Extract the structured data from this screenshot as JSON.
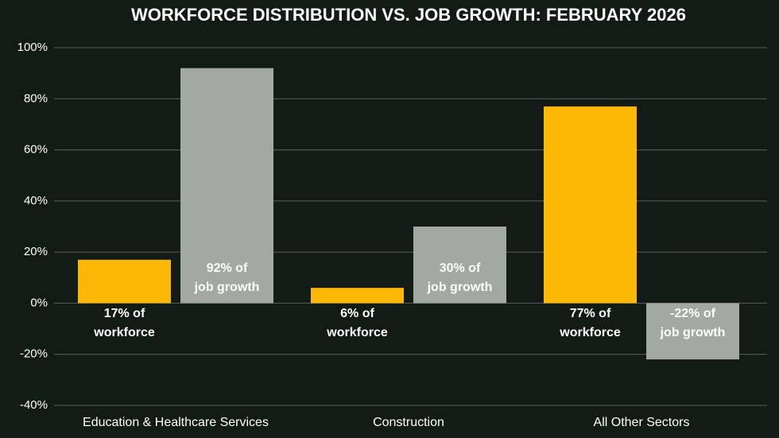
{
  "chart_data": {
    "type": "bar",
    "title": "WORKFORCE DISTRIBUTION VS. JOB GROWTH: FEBRUARY 2026",
    "categories": [
      "Education & Healthcare Services",
      "Construction",
      "All Other Sectors"
    ],
    "series": [
      {
        "color": "#fdb705",
        "values": [
          17,
          6,
          77
        ],
        "value_labels": [
          "17% of\nworkforce",
          "6% of\nworkforce",
          "77% of\nworkforce"
        ]
      },
      {
        "color": "#a3a8a3",
        "values": [
          92,
          30,
          -22
        ],
        "value_labels": [
          "92% of\njob growth",
          "30% of\njob growth",
          "-22% of\njob growth"
        ]
      }
    ],
    "ylim": [
      -40,
      100
    ],
    "yticks": [
      {
        "value": -40,
        "label": "-40%"
      },
      {
        "value": -20,
        "label": "-20%"
      },
      {
        "value": 0,
        "label": "0%"
      },
      {
        "value": 20,
        "label": "20%"
      },
      {
        "value": 40,
        "label": "40%"
      },
      {
        "value": 60,
        "label": "60%"
      },
      {
        "value": 80,
        "label": "80%"
      },
      {
        "value": 100,
        "label": "100%"
      }
    ],
    "grid": true
  }
}
